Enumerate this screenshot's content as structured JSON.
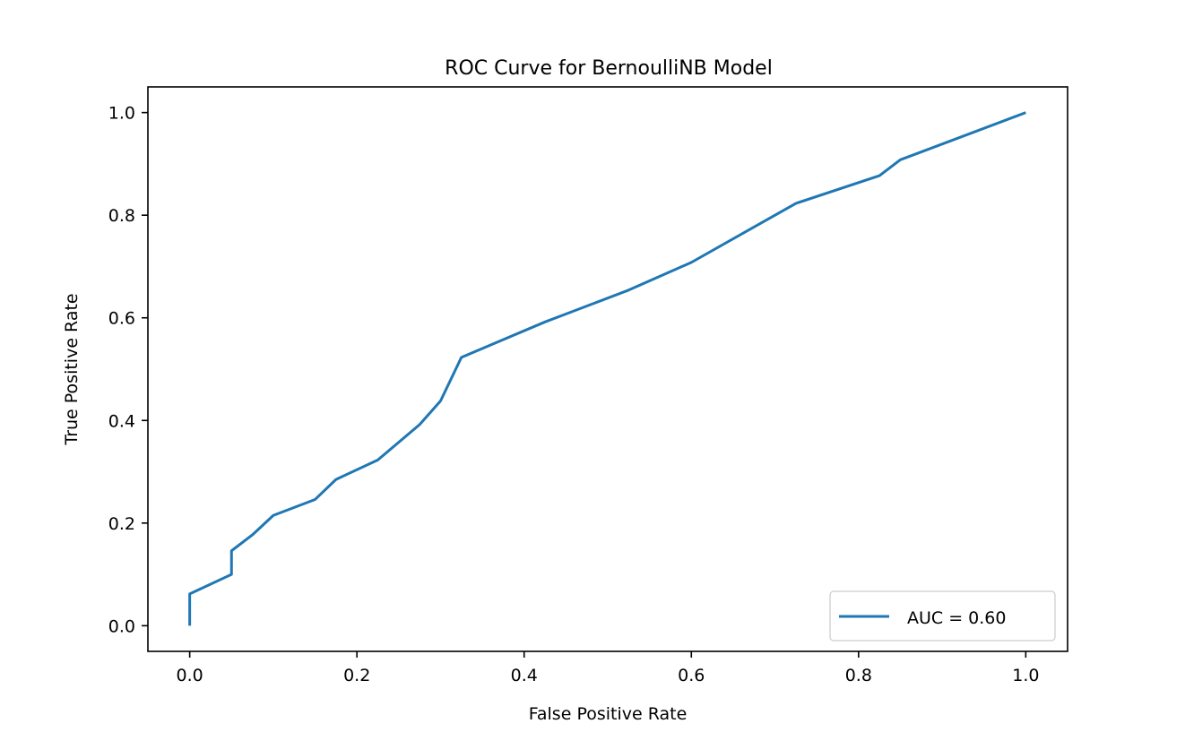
{
  "chart_data": {
    "type": "line",
    "title": "ROC Curve for BernoulliNB Model",
    "xlabel": "False Positive Rate",
    "ylabel": "True Positive Rate",
    "xlim": [
      -0.05,
      1.05
    ],
    "ylim": [
      -0.05,
      1.05
    ],
    "xticks": [
      0.0,
      0.2,
      0.4,
      0.6,
      0.8,
      1.0
    ],
    "xtick_labels": [
      "0.0",
      "0.2",
      "0.4",
      "0.6",
      "0.8",
      "1.0"
    ],
    "yticks": [
      0.0,
      0.2,
      0.4,
      0.6,
      0.8,
      1.0
    ],
    "ytick_labels": [
      "0.0",
      "0.2",
      "0.4",
      "0.6",
      "0.8",
      "1.0"
    ],
    "grid": false,
    "legend_position": "lower-right",
    "series": [
      {
        "name": "AUC = 0.60",
        "color": "#1f77b4",
        "x": [
          0.0,
          0.0,
          0.05,
          0.05,
          0.075,
          0.1,
          0.15,
          0.175,
          0.225,
          0.275,
          0.3,
          0.325,
          0.425,
          0.525,
          0.6,
          0.725,
          0.825,
          0.85,
          1.0
        ],
        "y": [
          0.0,
          0.062,
          0.1,
          0.146,
          0.177,
          0.215,
          0.246,
          0.285,
          0.323,
          0.392,
          0.438,
          0.523,
          0.592,
          0.654,
          0.708,
          0.823,
          0.877,
          0.908,
          1.0
        ]
      }
    ]
  }
}
